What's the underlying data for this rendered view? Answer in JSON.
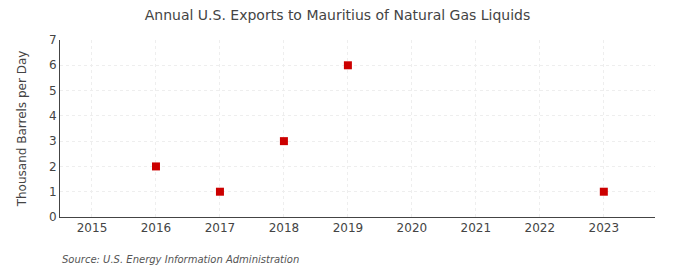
{
  "chart_data": {
    "type": "scatter",
    "title": "Annual U.S. Exports to Mauritius of Natural Gas Liquids",
    "ylabel": "Thousand Barrels per Day",
    "annotations": [
      "Source: U.S. Energy Information Administration"
    ],
    "x": [
      2016,
      2017,
      2018,
      2019,
      2023
    ],
    "values": [
      2,
      1,
      3,
      6,
      1
    ],
    "color": "#cc0000",
    "marker": "square",
    "xlim": [
      2014.5,
      2023.8
    ],
    "xticks": [
      2015,
      2016,
      2017,
      2018,
      2019,
      2020,
      2021,
      2022,
      2023
    ],
    "ylim": [
      0,
      7
    ],
    "yticks": [
      0,
      1,
      2,
      3,
      4,
      5,
      6,
      7
    ],
    "grid": true
  }
}
